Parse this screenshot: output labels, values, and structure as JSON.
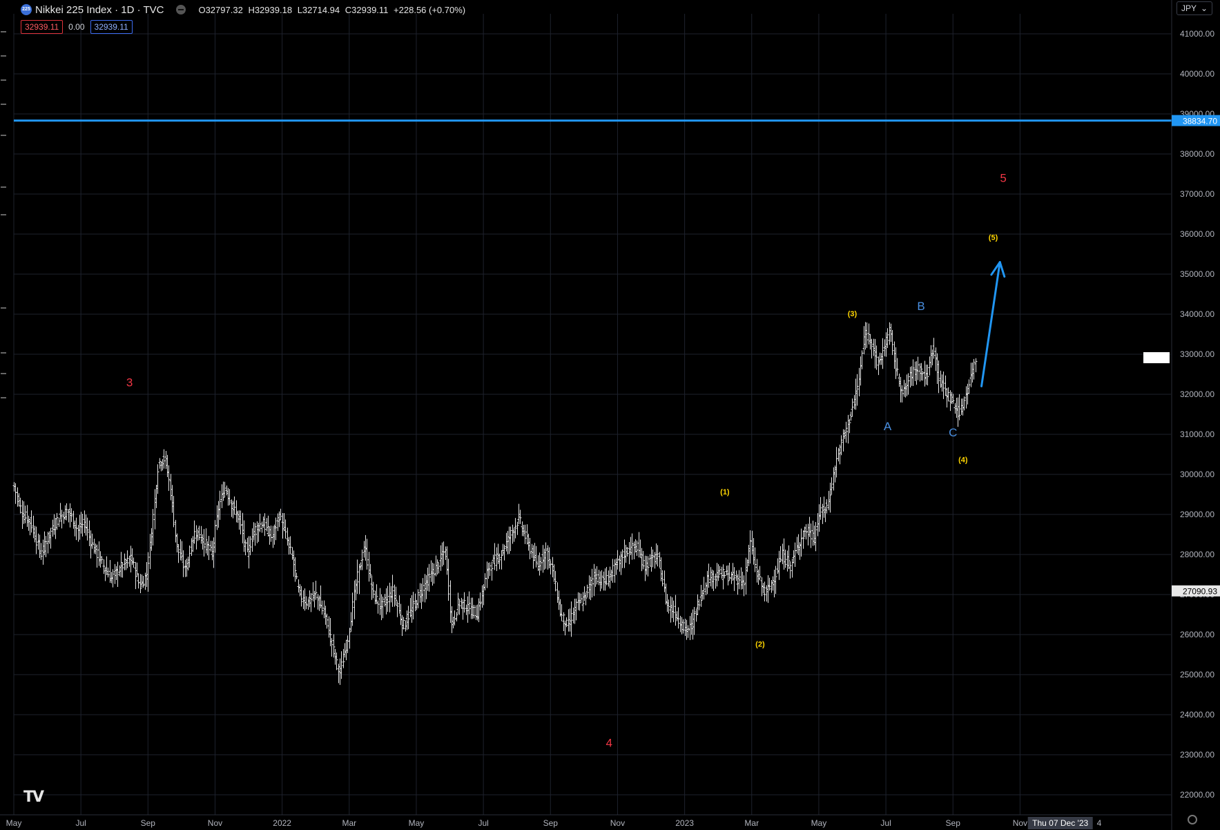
{
  "header": {
    "logo_text": "225",
    "title": "Nikkei 225 Index · 1D · TVC",
    "open": "O32797.32",
    "high": "H32939.18",
    "low": "L32714.94",
    "close": "C32939.11",
    "change": "+228.56 (+0.70%)",
    "bid": "32939.11",
    "spread": "0.00",
    "ask": "32939.11",
    "currency": "JPY",
    "currency_chevron": "⌄"
  },
  "colors": {
    "background": "#000000",
    "grid": "#1e222d",
    "bars": "#e8e8e8",
    "blue_line": "#2196f3",
    "red_label": "#f23645",
    "yellow_label": "#ffd600",
    "blue_label": "#4a90e2"
  },
  "chart_data": {
    "type": "bar",
    "title": "Nikkei 225 Index · 1D · TVC",
    "y_axis_ticks": [
      22000,
      23000,
      24000,
      25000,
      26000,
      27000,
      28000,
      29000,
      30000,
      31000,
      32000,
      33000,
      34000,
      35000,
      36000,
      37000,
      38000,
      39000,
      40000,
      41000
    ],
    "ylim": [
      21500,
      41500
    ],
    "x_tick_labels": [
      "May",
      "Jul",
      "Sep",
      "Nov",
      "2022",
      "Mar",
      "May",
      "Jul",
      "Sep",
      "Nov",
      "2023",
      "Mar",
      "May",
      "Jul",
      "Sep",
      "Nov"
    ],
    "x_tick_months": [
      0,
      2,
      4,
      6,
      8,
      10,
      12,
      14,
      16,
      18,
      20,
      22,
      24,
      26,
      28,
      30
    ],
    "xlim_months": [
      0,
      34.5
    ],
    "crosshair_date": "Thu 07 Dec '23",
    "crosshair_month": 31.2,
    "last_edge_label": "4",
    "price_path_anchors": [
      [
        0.0,
        29700
      ],
      [
        0.25,
        29000
      ],
      [
        0.5,
        28800
      ],
      [
        0.8,
        28000
      ],
      [
        1.0,
        28400
      ],
      [
        1.3,
        28900
      ],
      [
        1.6,
        29100
      ],
      [
        1.9,
        28600
      ],
      [
        2.1,
        28800
      ],
      [
        2.3,
        28300
      ],
      [
        2.6,
        27800
      ],
      [
        2.9,
        27400
      ],
      [
        3.2,
        27700
      ],
      [
        3.5,
        27900
      ],
      [
        3.75,
        27200
      ],
      [
        3.95,
        27500
      ],
      [
        4.1,
        28600
      ],
      [
        4.3,
        30300
      ],
      [
        4.5,
        30400
      ],
      [
        4.65,
        29700
      ],
      [
        4.85,
        28200
      ],
      [
        5.1,
        27600
      ],
      [
        5.4,
        28600
      ],
      [
        5.6,
        28400
      ],
      [
        5.9,
        28000
      ],
      [
        6.1,
        29200
      ],
      [
        6.3,
        29700
      ],
      [
        6.5,
        29200
      ],
      [
        6.7,
        28900
      ],
      [
        6.95,
        28000
      ],
      [
        7.15,
        28600
      ],
      [
        7.4,
        28800
      ],
      [
        7.7,
        28400
      ],
      [
        7.9,
        29000
      ],
      [
        8.05,
        28600
      ],
      [
        8.3,
        27900
      ],
      [
        8.5,
        27000
      ],
      [
        8.75,
        26800
      ],
      [
        9.0,
        27000
      ],
      [
        9.3,
        26400
      ],
      [
        9.55,
        25500
      ],
      [
        9.7,
        25000
      ],
      [
        9.95,
        25900
      ],
      [
        10.2,
        27300
      ],
      [
        10.45,
        28200
      ],
      [
        10.7,
        27000
      ],
      [
        10.95,
        26700
      ],
      [
        11.3,
        27100
      ],
      [
        11.6,
        26200
      ],
      [
        11.9,
        26700
      ],
      [
        12.2,
        27200
      ],
      [
        12.6,
        27700
      ],
      [
        12.85,
        28100
      ],
      [
        13.05,
        26200
      ],
      [
        13.25,
        26800
      ],
      [
        13.5,
        26700
      ],
      [
        13.8,
        26500
      ],
      [
        14.15,
        27700
      ],
      [
        14.5,
        28000
      ],
      [
        14.8,
        28500
      ],
      [
        15.05,
        28900
      ],
      [
        15.3,
        28300
      ],
      [
        15.6,
        27700
      ],
      [
        15.85,
        28100
      ],
      [
        16.05,
        27600
      ],
      [
        16.3,
        26500
      ],
      [
        16.5,
        26200
      ],
      [
        16.75,
        26700
      ],
      [
        17.0,
        26900
      ],
      [
        17.3,
        27500
      ],
      [
        17.6,
        27300
      ],
      [
        17.95,
        27700
      ],
      [
        18.25,
        28100
      ],
      [
        18.55,
        28200
      ],
      [
        18.8,
        27700
      ],
      [
        19.05,
        27900
      ],
      [
        19.2,
        27900
      ],
      [
        19.45,
        26800
      ],
      [
        19.75,
        26500
      ],
      [
        20.0,
        26100
      ],
      [
        20.2,
        26200
      ],
      [
        20.4,
        26800
      ],
      [
        20.65,
        27400
      ],
      [
        20.95,
        27500
      ],
      [
        21.2,
        27500
      ],
      [
        21.5,
        27400
      ],
      [
        21.75,
        27300
      ],
      [
        21.95,
        28300
      ],
      [
        22.15,
        27500
      ],
      [
        22.4,
        27000
      ],
      [
        22.7,
        27500
      ],
      [
        22.9,
        28000
      ],
      [
        23.15,
        27700
      ],
      [
        23.35,
        28200
      ],
      [
        23.6,
        28600
      ],
      [
        23.85,
        28400
      ],
      [
        24.0,
        29000
      ],
      [
        24.25,
        29200
      ],
      [
        24.5,
        30300
      ],
      [
        24.75,
        31000
      ],
      [
        24.95,
        31500
      ],
      [
        25.2,
        32400
      ],
      [
        25.35,
        33500
      ],
      [
        25.55,
        33400
      ],
      [
        25.75,
        32700
      ],
      [
        25.95,
        33200
      ],
      [
        26.1,
        33600
      ],
      [
        26.3,
        32600
      ],
      [
        26.5,
        32000
      ],
      [
        26.75,
        32500
      ],
      [
        26.95,
        32700
      ],
      [
        27.2,
        32400
      ],
      [
        27.4,
        33200
      ],
      [
        27.6,
        32300
      ],
      [
        27.75,
        32100
      ],
      [
        28.05,
        31700
      ],
      [
        28.2,
        31500
      ],
      [
        28.45,
        32200
      ],
      [
        28.6,
        32700
      ],
      [
        28.7,
        32939
      ]
    ],
    "horizontal_line": {
      "value": 38834.7,
      "label": "38834.70"
    },
    "price_labels": [
      {
        "value": 27090.93,
        "label": "27090.93"
      }
    ],
    "arrow": {
      "from": [
        28.85,
        32200
      ],
      "to": [
        29.4,
        35300
      ]
    },
    "annotations": [
      {
        "text": "3",
        "x": 3.45,
        "y": 32200,
        "style": "red"
      },
      {
        "text": "4",
        "x": 17.75,
        "y": 23200,
        "style": "red"
      },
      {
        "text": "5",
        "x": 29.5,
        "y": 37300,
        "style": "red"
      },
      {
        "text": "(1)",
        "x": 21.2,
        "y": 29500,
        "style": "yellow"
      },
      {
        "text": "(2)",
        "x": 22.25,
        "y": 25700,
        "style": "yellow"
      },
      {
        "text": "(3)",
        "x": 25.0,
        "y": 33950,
        "style": "yellow"
      },
      {
        "text": "(4)",
        "x": 28.3,
        "y": 30300,
        "style": "yellow"
      },
      {
        "text": "(5)",
        "x": 29.2,
        "y": 35850,
        "style": "yellow"
      },
      {
        "text": "A",
        "x": 26.05,
        "y": 31100,
        "style": "blue"
      },
      {
        "text": "B",
        "x": 27.05,
        "y": 34100,
        "style": "blue"
      },
      {
        "text": "C",
        "x": 28.0,
        "y": 30950,
        "style": "blue"
      }
    ]
  }
}
